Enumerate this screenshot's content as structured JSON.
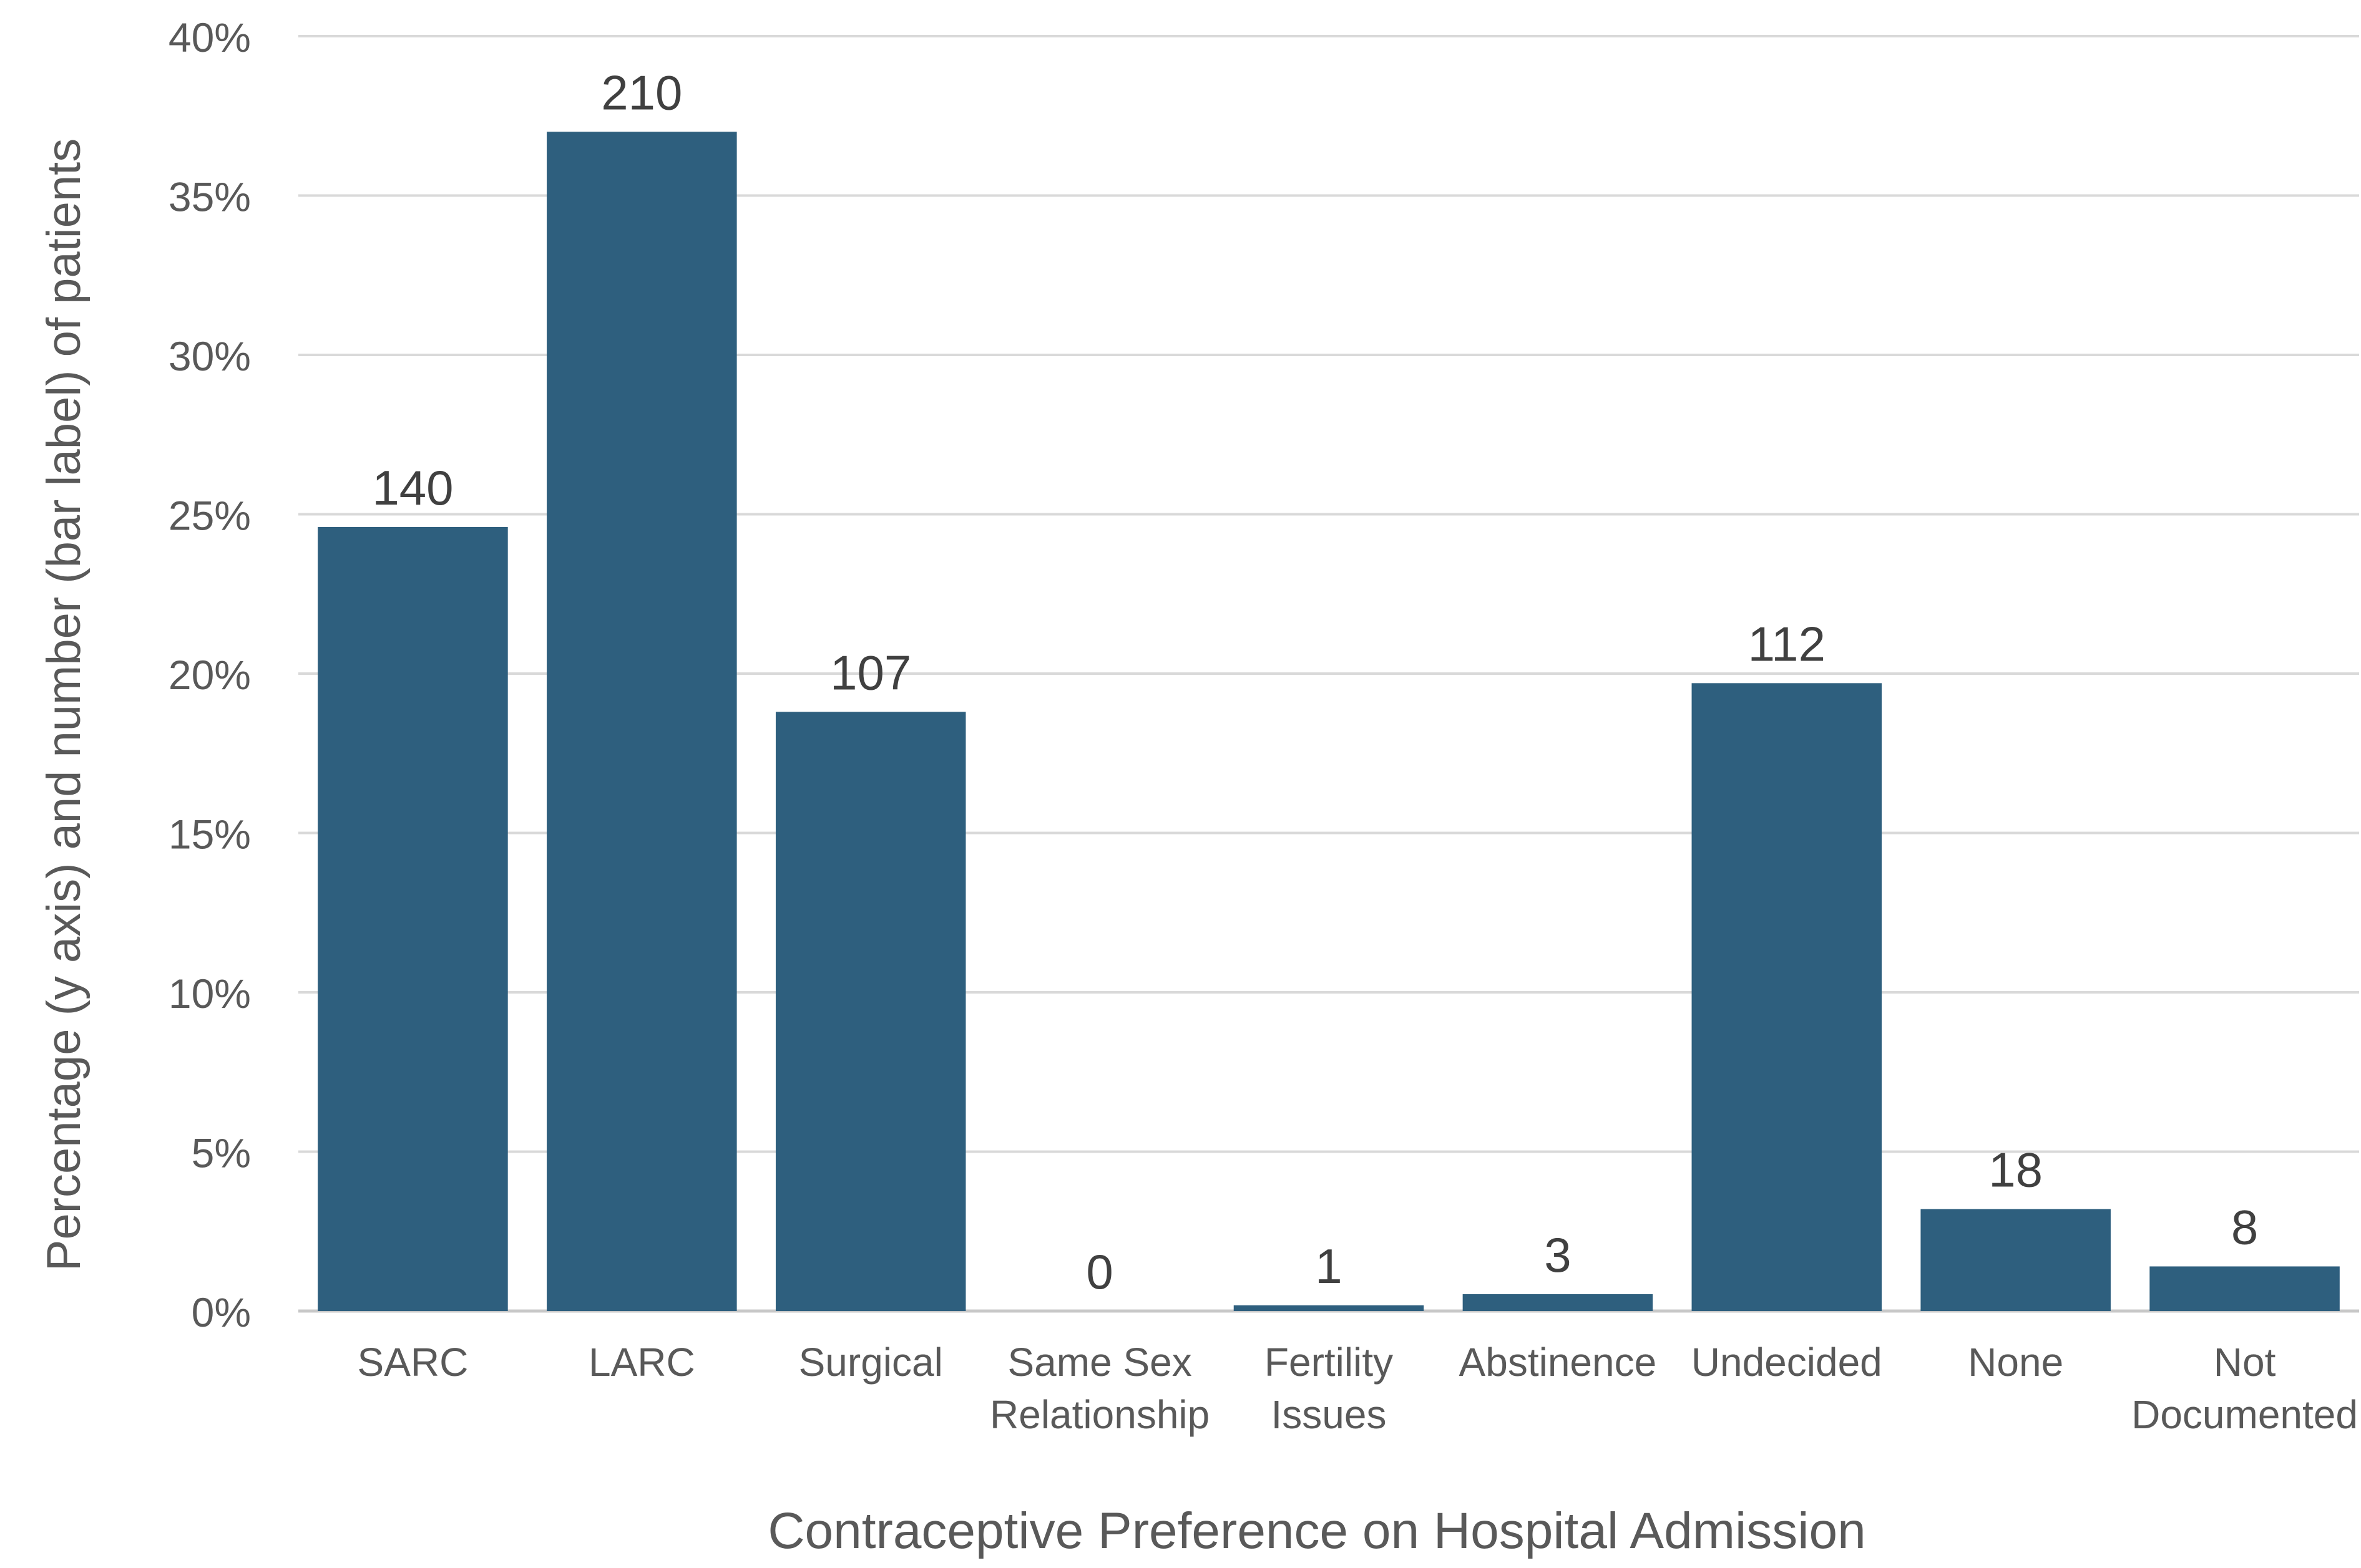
{
  "chart_data": {
    "type": "bar",
    "title": "",
    "xlabel": "Contraceptive Preference on Hospital Admission",
    "ylabel": "Percentage  (y axis) and  number (bar label) of patients",
    "categories": [
      [
        "SARC"
      ],
      [
        "LARC"
      ],
      [
        "Surgical"
      ],
      [
        "Same Sex",
        "Relationship"
      ],
      [
        "Fertility",
        "Issues"
      ],
      [
        "Abstinence"
      ],
      [
        "Undecided"
      ],
      [
        "None"
      ],
      [
        "Not",
        "Documented"
      ]
    ],
    "series": [
      {
        "values": [
          24.6,
          37.0,
          18.8,
          0.0,
          0.18,
          0.53,
          19.7,
          3.2,
          1.4
        ],
        "labels": [
          "140",
          "210",
          "107",
          "0",
          "1",
          "3",
          "112",
          "18",
          "8"
        ]
      }
    ],
    "ylim": [
      0,
      40
    ],
    "yticks": [
      0,
      5,
      10,
      15,
      20,
      25,
      30,
      35,
      40
    ],
    "ytick_labels": [
      "0%",
      "5%",
      "10%",
      "15%",
      "20%",
      "25%",
      "30%",
      "35%",
      "40%"
    ],
    "grid": true,
    "legend": "none",
    "colors": {
      "bar": "#2e5f7e",
      "grid": "#d9d9d9",
      "axis": "#c8c8c8",
      "text": "#595959",
      "value_label": "#404040"
    }
  }
}
